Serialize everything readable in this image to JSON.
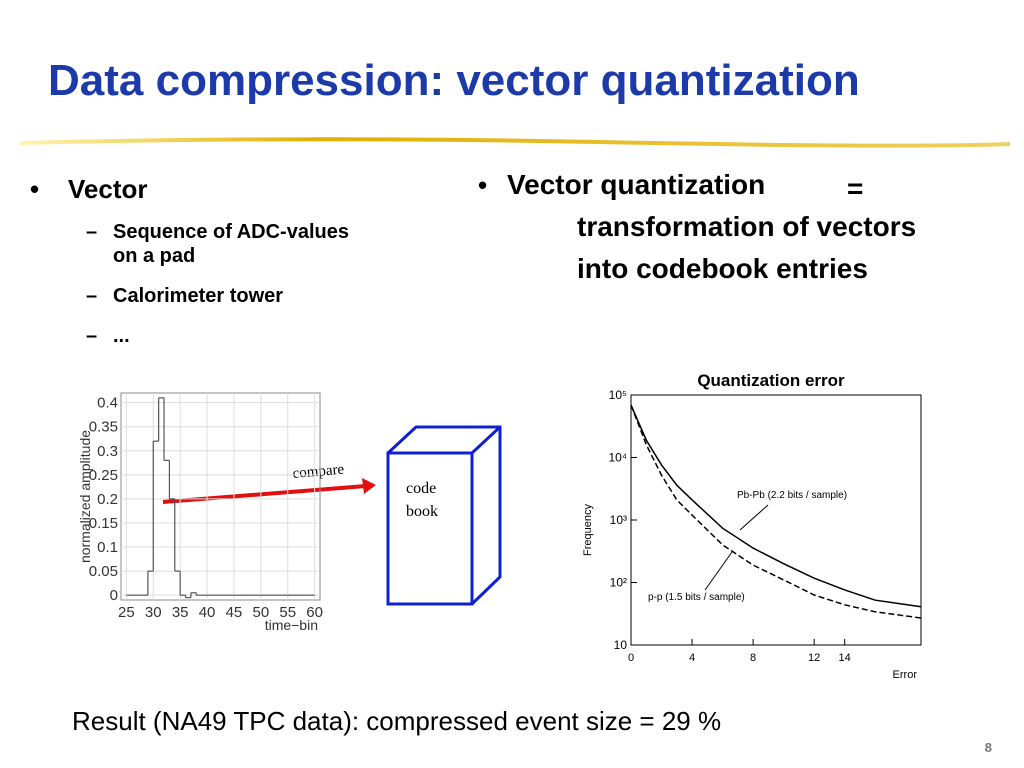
{
  "title": "Data compression: vector quantization",
  "left": {
    "bullet": "Vector",
    "items": [
      "Sequence of ADC-values",
      "on a pad",
      "Calorimeter tower",
      "..."
    ]
  },
  "right": {
    "bullet": "Vector quantization",
    "equals": "=",
    "lines": [
      "transformation of vectors",
      "into codebook entries"
    ]
  },
  "diagram": {
    "arrow_label": "compare",
    "box_lines": [
      "code",
      "book"
    ]
  },
  "result": "Result (NA49 TPC data): compressed event size = 29 %",
  "page_number": "8",
  "chart_data": [
    {
      "type": "histogram",
      "ylabel": "normalized amplitude",
      "xlabel": "time−bin",
      "bins": [
        25,
        26,
        27,
        28,
        29,
        30,
        31,
        32,
        33,
        34,
        35,
        36,
        37,
        38,
        39,
        40,
        41,
        42,
        43,
        44,
        45,
        46,
        47,
        48,
        49,
        50,
        51,
        52,
        53,
        54,
        55,
        56,
        57,
        58,
        59,
        60
      ],
      "counts": [
        0,
        0,
        0,
        0,
        0.05,
        0.32,
        0.41,
        0.28,
        0.2,
        0.05,
        0,
        -0.005,
        0.005,
        0,
        0,
        0,
        0,
        0,
        0,
        0,
        0,
        0,
        0,
        0,
        0,
        0,
        0,
        0,
        0,
        0,
        0,
        0,
        0,
        0,
        0
      ],
      "xlim": [
        24,
        61
      ],
      "ylim": [
        -0.01,
        0.42
      ],
      "xticks": [
        25,
        30,
        35,
        40,
        45,
        50,
        55,
        60
      ],
      "yticks": [
        0,
        0.05,
        0.1,
        0.15,
        0.2,
        0.25,
        0.3,
        0.35,
        0.4
      ],
      "grid": true,
      "color": "#555555"
    },
    {
      "type": "line",
      "title": "Quantization error",
      "xlabel": "Error",
      "ylabel": "Frequency",
      "log_y": true,
      "x": [
        0,
        1,
        2,
        3,
        4,
        6,
        8,
        10,
        12,
        14,
        16,
        19
      ],
      "series": [
        {
          "name": "Pb-Pb (2.2 bits / sample)",
          "color": "#000000",
          "dash": false,
          "values": [
            69000,
            19000,
            7600,
            3600,
            2100,
            740,
            355,
            200,
            117,
            76,
            52,
            41
          ]
        },
        {
          "name": "p-p (1.5 bits / sample)",
          "color": "#000000",
          "dash": true,
          "values": [
            69000,
            16000,
            5200,
            2100,
            1200,
            400,
            190,
            110,
            63,
            44,
            34,
            27
          ]
        }
      ],
      "xlim": [
        0,
        19
      ],
      "ylim": [
        10,
        100000
      ],
      "xticks": [
        0,
        4,
        8,
        12,
        14
      ],
      "yticks": [
        10,
        {
          "value": 100,
          "label": "10²"
        },
        {
          "value": 1000,
          "label": "10³"
        },
        {
          "value": 10000,
          "label": "10⁴"
        },
        {
          "value": 100000,
          "label": "10⁵"
        }
      ]
    }
  ]
}
